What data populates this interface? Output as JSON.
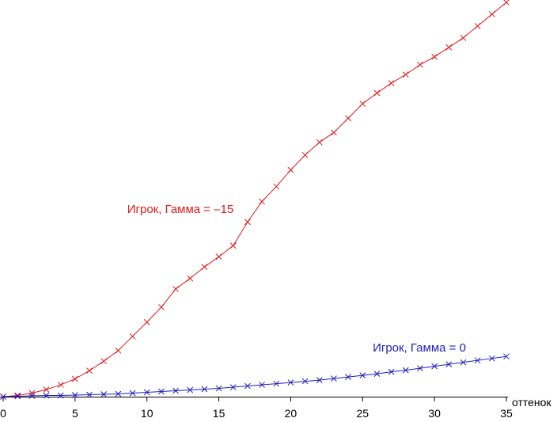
{
  "chart_data": {
    "type": "line",
    "title": "",
    "xlabel": "оттенок",
    "ylabel": "",
    "xlim": [
      0,
      35
    ],
    "ylim": [
      0,
      100
    ],
    "xticks": [
      0,
      5,
      10,
      15,
      20,
      25,
      30,
      35
    ],
    "grid": false,
    "legend": "none",
    "x": [
      0,
      1,
      2,
      3,
      4,
      5,
      6,
      7,
      8,
      9,
      10,
      11,
      12,
      13,
      14,
      15,
      16,
      17,
      18,
      19,
      20,
      21,
      22,
      23,
      24,
      25,
      26,
      27,
      28,
      29,
      30,
      31,
      32,
      33,
      34,
      35
    ],
    "series": [
      {
        "name": "Игрок, Гамма = –15",
        "color": "#e31a1c",
        "marker": "x",
        "values": [
          0.0,
          0.3,
          0.9,
          1.8,
          3.0,
          4.5,
          6.6,
          9.0,
          11.7,
          15.3,
          18.9,
          22.7,
          27.3,
          30.0,
          32.9,
          35.5,
          38.3,
          44.3,
          49.5,
          53.3,
          57.5,
          61.3,
          64.5,
          67.0,
          70.6,
          74.3,
          77.0,
          79.5,
          81.7,
          84.2,
          86.2,
          88.6,
          91.0,
          94.0,
          97.0,
          100.0
        ]
      },
      {
        "name": "Игрок, Гамма = 0",
        "color": "#1f1fbf",
        "marker": "x",
        "values": [
          0.0,
          0.1,
          0.2,
          0.3,
          0.3,
          0.4,
          0.5,
          0.6,
          0.7,
          0.9,
          1.1,
          1.3,
          1.5,
          1.7,
          1.9,
          2.1,
          2.4,
          2.7,
          3.0,
          3.3,
          3.6,
          3.9,
          4.2,
          4.6,
          5.0,
          5.4,
          5.8,
          6.3,
          6.7,
          7.2,
          7.7,
          8.2,
          8.7,
          9.2,
          9.7,
          10.2
        ]
      }
    ],
    "annotations": [
      {
        "text": "Игрок, Гамма = –15",
        "series": 0
      },
      {
        "text": "Игрок, Гамма = 0",
        "series": 1
      }
    ]
  }
}
